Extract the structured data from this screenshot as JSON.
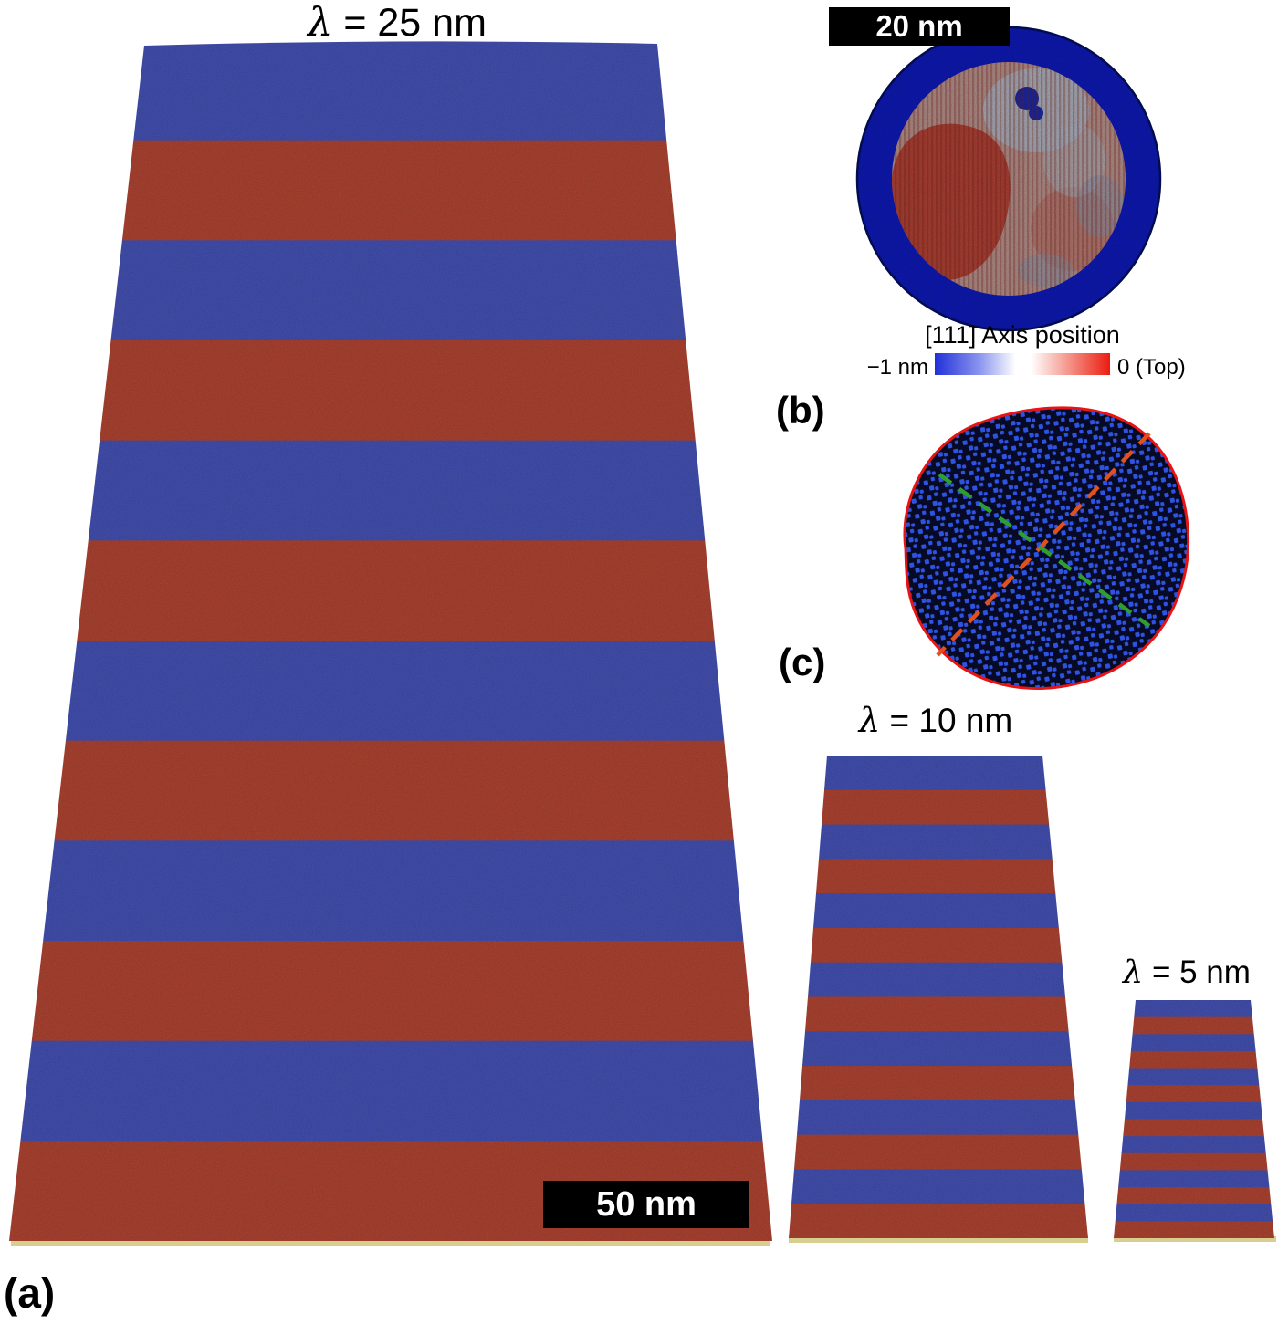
{
  "colors": {
    "stripe_blue": "#4a58c4",
    "stripe_red": "#c04a36",
    "base": "#d6cf8e",
    "ring_blue": "#0f1cc6",
    "ring_edge": "#041060",
    "inner_base": "#c59c96",
    "patch_red": "#bd3b2c",
    "patch_salmon": "#c4685a",
    "patch_gray": "#b9c3d2",
    "patch_slate": "#94a0b8",
    "patch_navy": "#1c2cb4",
    "blob_bg": "#060a24",
    "dot_blue": "#2e52e2",
    "outline_red": "#e61414",
    "dash_orange": "#e0511e",
    "dash_green": "#2e9e2e",
    "cb_left": "#2030d8",
    "cb_right": "#ec1b10",
    "scalebar_bg": "#000000",
    "scalebar_text": "#ffffff"
  },
  "panel_a": {
    "label": "(a)",
    "scale_bar": "50 nm",
    "pillars": [
      {
        "name": "lambda-25nm",
        "symbol": "λ",
        "suffix": " = 25 nm",
        "stripes": [
          "blue",
          "red",
          "blue",
          "red",
          "blue",
          "red",
          "blue",
          "red",
          "blue",
          "red",
          "blue",
          "red"
        ]
      },
      {
        "name": "lambda-10nm",
        "symbol": "λ",
        "suffix": " = 10 nm",
        "stripes": [
          "blue",
          "red",
          "blue",
          "red",
          "blue",
          "red",
          "blue",
          "red",
          "blue",
          "red",
          "blue",
          "red",
          "blue",
          "red"
        ]
      },
      {
        "name": "lambda-5nm",
        "symbol": "λ",
        "suffix": " = 5 nm",
        "stripes": [
          "blue",
          "red",
          "blue",
          "red",
          "blue",
          "red",
          "blue",
          "red",
          "blue",
          "red",
          "blue",
          "red",
          "blue",
          "red"
        ]
      }
    ]
  },
  "panel_b": {
    "label": "(b)",
    "scale_bar": "20 nm",
    "colorbar": {
      "title": "[111] Axis position",
      "left_label": "−1 nm",
      "right_label": "0 (Top)"
    }
  },
  "panel_c": {
    "label": "(c)"
  }
}
